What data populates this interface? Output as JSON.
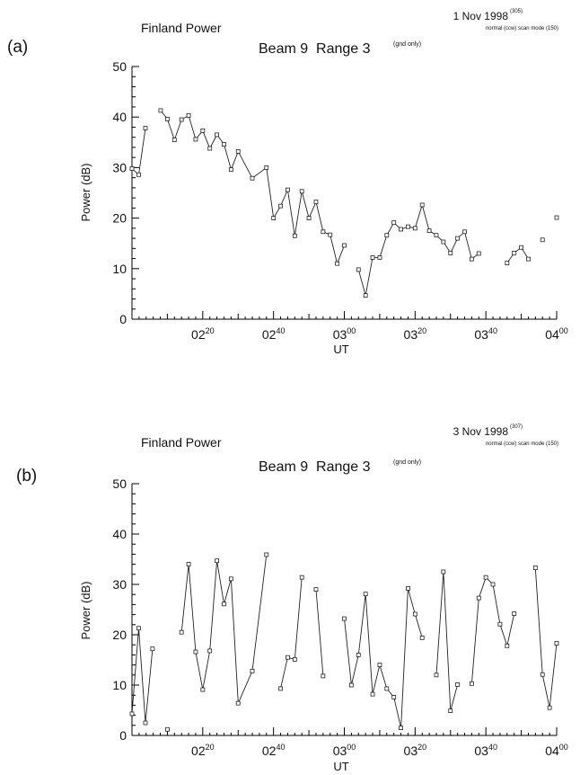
{
  "chart_data": [
    {
      "type": "line",
      "panel_label": "(a)",
      "header_left": "Finland Power",
      "date": "1 Nov 1998",
      "date_sup": "(305)",
      "mode": "normal (ccw) scan mode (150)",
      "title": "Beam 9  Range 3",
      "title_sup": "(gnd only)",
      "xlabel": "UT",
      "ylabel": "Power (dB)",
      "ylim": [
        0,
        50
      ],
      "yticks": [
        "0",
        "10",
        "20",
        "30",
        "40",
        "50"
      ],
      "xlim": [
        0,
        120
      ],
      "xticks": [
        {
          "x": 20,
          "main": "02",
          "sup": "20"
        },
        {
          "x": 40,
          "main": "02",
          "sup": "40"
        },
        {
          "x": 60,
          "main": "03",
          "sup": "00"
        },
        {
          "x": 80,
          "main": "03",
          "sup": "20"
        },
        {
          "x": 100,
          "main": "03",
          "sup": "40"
        },
        {
          "x": 120,
          "main": "04",
          "sup": "00"
        }
      ],
      "x_unit": "minutes after 02:00 UT",
      "segments": [
        [
          [
            0,
            29.8
          ],
          [
            1.9,
            28.6
          ],
          [
            3.8,
            37.8
          ]
        ],
        [
          [
            8.1,
            41.3
          ],
          [
            10,
            39.6
          ],
          [
            12,
            35.5
          ],
          [
            14,
            39.5
          ],
          [
            16,
            40.3
          ],
          [
            18,
            35.6
          ],
          [
            20,
            37.3
          ],
          [
            22,
            33.8
          ],
          [
            24,
            36.5
          ],
          [
            26,
            34.6
          ],
          [
            28,
            29.6
          ],
          [
            30,
            33.2
          ],
          [
            34,
            27.9
          ],
          [
            38,
            30
          ],
          [
            40,
            20
          ],
          [
            42,
            22.4
          ],
          [
            44,
            25.6
          ],
          [
            46,
            16.5
          ],
          [
            48,
            25.3
          ],
          [
            50,
            20
          ],
          [
            52,
            23.2
          ],
          [
            54,
            17.3
          ],
          [
            56,
            16.7
          ],
          [
            58,
            11
          ],
          [
            60,
            14.6
          ]
        ],
        [
          [
            64,
            9.8
          ],
          [
            66,
            4.7
          ],
          [
            68,
            12.2
          ],
          [
            70,
            12.2
          ],
          [
            72,
            16.6
          ],
          [
            74,
            19.1
          ],
          [
            76,
            17.8
          ],
          [
            78,
            18.3
          ],
          [
            80,
            18
          ],
          [
            82,
            22.6
          ],
          [
            84,
            17.5
          ],
          [
            86,
            16.6
          ],
          [
            88,
            15.3
          ],
          [
            90,
            13.1
          ],
          [
            92,
            16
          ],
          [
            94,
            17.3
          ],
          [
            96,
            11.9
          ],
          [
            98,
            13
          ]
        ],
        [
          [
            106,
            11.1
          ],
          [
            108,
            13.1
          ],
          [
            110,
            14.2
          ],
          [
            112,
            11.9
          ]
        ],
        [
          [
            116,
            15.7
          ]
        ],
        [
          [
            120,
            20.1
          ]
        ]
      ]
    },
    {
      "type": "line",
      "panel_label": "(b)",
      "header_left": "Finland Power",
      "date": "3 Nov 1998",
      "date_sup": "(307)",
      "mode": "normal (ccw) scan mode (150)",
      "title": "Beam 9  Range 3",
      "title_sup": "(gnd only)",
      "xlabel": "UT",
      "ylabel": "Power (dB)",
      "ylim": [
        0,
        50
      ],
      "yticks": [
        "0",
        "10",
        "20",
        "30",
        "40",
        "50"
      ],
      "xlim": [
        0,
        120
      ],
      "xticks": [
        {
          "x": 20,
          "main": "02",
          "sup": "20"
        },
        {
          "x": 40,
          "main": "02",
          "sup": "40"
        },
        {
          "x": 60,
          "main": "03",
          "sup": "00"
        },
        {
          "x": 80,
          "main": "03",
          "sup": "20"
        },
        {
          "x": 100,
          "main": "03",
          "sup": "40"
        },
        {
          "x": 120,
          "main": "04",
          "sup": "00"
        }
      ],
      "x_unit": "minutes after 02:00 UT",
      "segments": [
        [
          [
            0,
            4.3
          ],
          [
            1.9,
            21.3
          ],
          [
            3.8,
            2.5
          ],
          [
            5.8,
            17.2
          ]
        ],
        [
          [
            10,
            1.2
          ]
        ],
        [
          [
            14,
            20.5
          ],
          [
            16,
            34
          ],
          [
            18,
            16.6
          ],
          [
            20,
            9.1
          ],
          [
            22,
            16.8
          ],
          [
            24,
            34.7
          ],
          [
            26,
            26.1
          ],
          [
            28,
            31.1
          ],
          [
            30,
            6.4
          ],
          [
            34,
            12.8
          ],
          [
            38,
            35.9
          ]
        ],
        [
          [
            42,
            9.3
          ],
          [
            44,
            15.5
          ],
          [
            46,
            15.1
          ],
          [
            48,
            31.4
          ]
        ],
        [
          [
            52,
            29
          ],
          [
            54,
            11.8
          ]
        ],
        [
          [
            60,
            23.2
          ],
          [
            62,
            10
          ],
          [
            64,
            16
          ],
          [
            66,
            28.1
          ],
          [
            68,
            8.2
          ],
          [
            70,
            14
          ],
          [
            72,
            9.3
          ],
          [
            74,
            7.6
          ],
          [
            76,
            1.5
          ],
          [
            78,
            29.2
          ],
          [
            80,
            24.1
          ],
          [
            82,
            19.4
          ]
        ],
        [
          [
            86,
            12
          ],
          [
            88,
            32.5
          ],
          [
            90,
            4.9
          ],
          [
            92,
            10.1
          ]
        ],
        [
          [
            96,
            10.3
          ],
          [
            98,
            27.3
          ],
          [
            100,
            31.4
          ],
          [
            102,
            30
          ],
          [
            104,
            22.1
          ],
          [
            106,
            17.8
          ],
          [
            108,
            24.2
          ]
        ],
        [
          [
            114,
            33.3
          ],
          [
            116,
            12.1
          ],
          [
            118,
            5.5
          ],
          [
            120,
            18.3
          ]
        ]
      ]
    }
  ]
}
